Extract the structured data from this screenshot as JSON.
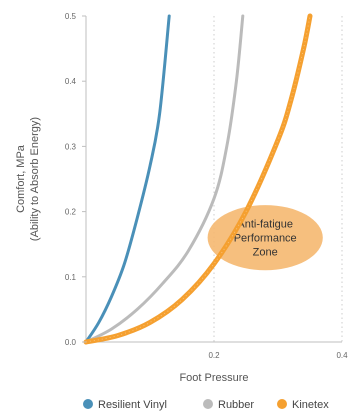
{
  "chart_data": {
    "type": "line",
    "xlabel": "Foot Pressure",
    "ylabel_lines": [
      "Comfort, MPa",
      "(Ability to Absorb Energy)"
    ],
    "xlim": [
      0,
      0.4
    ],
    "ylim": [
      0,
      0.5
    ],
    "x_ticks": [
      {
        "value": 0.2,
        "label": "0.2"
      },
      {
        "value": 0.4,
        "label": "0.4"
      }
    ],
    "y_ticks": [
      {
        "value": 0.0,
        "label": "0.0"
      },
      {
        "value": 0.1,
        "label": "0.1"
      },
      {
        "value": 0.2,
        "label": "0.2"
      },
      {
        "value": 0.3,
        "label": "0.3"
      },
      {
        "value": 0.4,
        "label": "0.4"
      },
      {
        "value": 0.5,
        "label": "0.5"
      }
    ],
    "grid": "vertical dotted",
    "legend_position": "bottom",
    "series": [
      {
        "name": "Resilient Vinyl",
        "color": "#4a90b8",
        "x": [
          0.0,
          0.02,
          0.04,
          0.06,
          0.08,
          0.1,
          0.115,
          0.13
        ],
        "y": [
          0.0,
          0.03,
          0.07,
          0.12,
          0.19,
          0.27,
          0.35,
          0.5
        ]
      },
      {
        "name": "Rubber",
        "color": "#bbbbbb",
        "x": [
          0.0,
          0.04,
          0.08,
          0.12,
          0.16,
          0.2,
          0.22,
          0.235,
          0.245
        ],
        "y": [
          0.0,
          0.02,
          0.05,
          0.09,
          0.14,
          0.22,
          0.3,
          0.4,
          0.5
        ]
      },
      {
        "name": "Kinetex",
        "color": "#f5a030",
        "x": [
          0.0,
          0.05,
          0.1,
          0.15,
          0.2,
          0.25,
          0.3,
          0.32,
          0.34,
          0.35
        ],
        "y": [
          0.0,
          0.01,
          0.03,
          0.065,
          0.12,
          0.2,
          0.31,
          0.37,
          0.45,
          0.5
        ]
      }
    ],
    "annotations": [
      {
        "lines": [
          "Anti-fatigue",
          "Performance",
          "Zone"
        ],
        "fill": "#f5b870",
        "cx": 0.28,
        "cy": 0.16,
        "rx": 0.09,
        "ry": 0.05
      }
    ]
  }
}
